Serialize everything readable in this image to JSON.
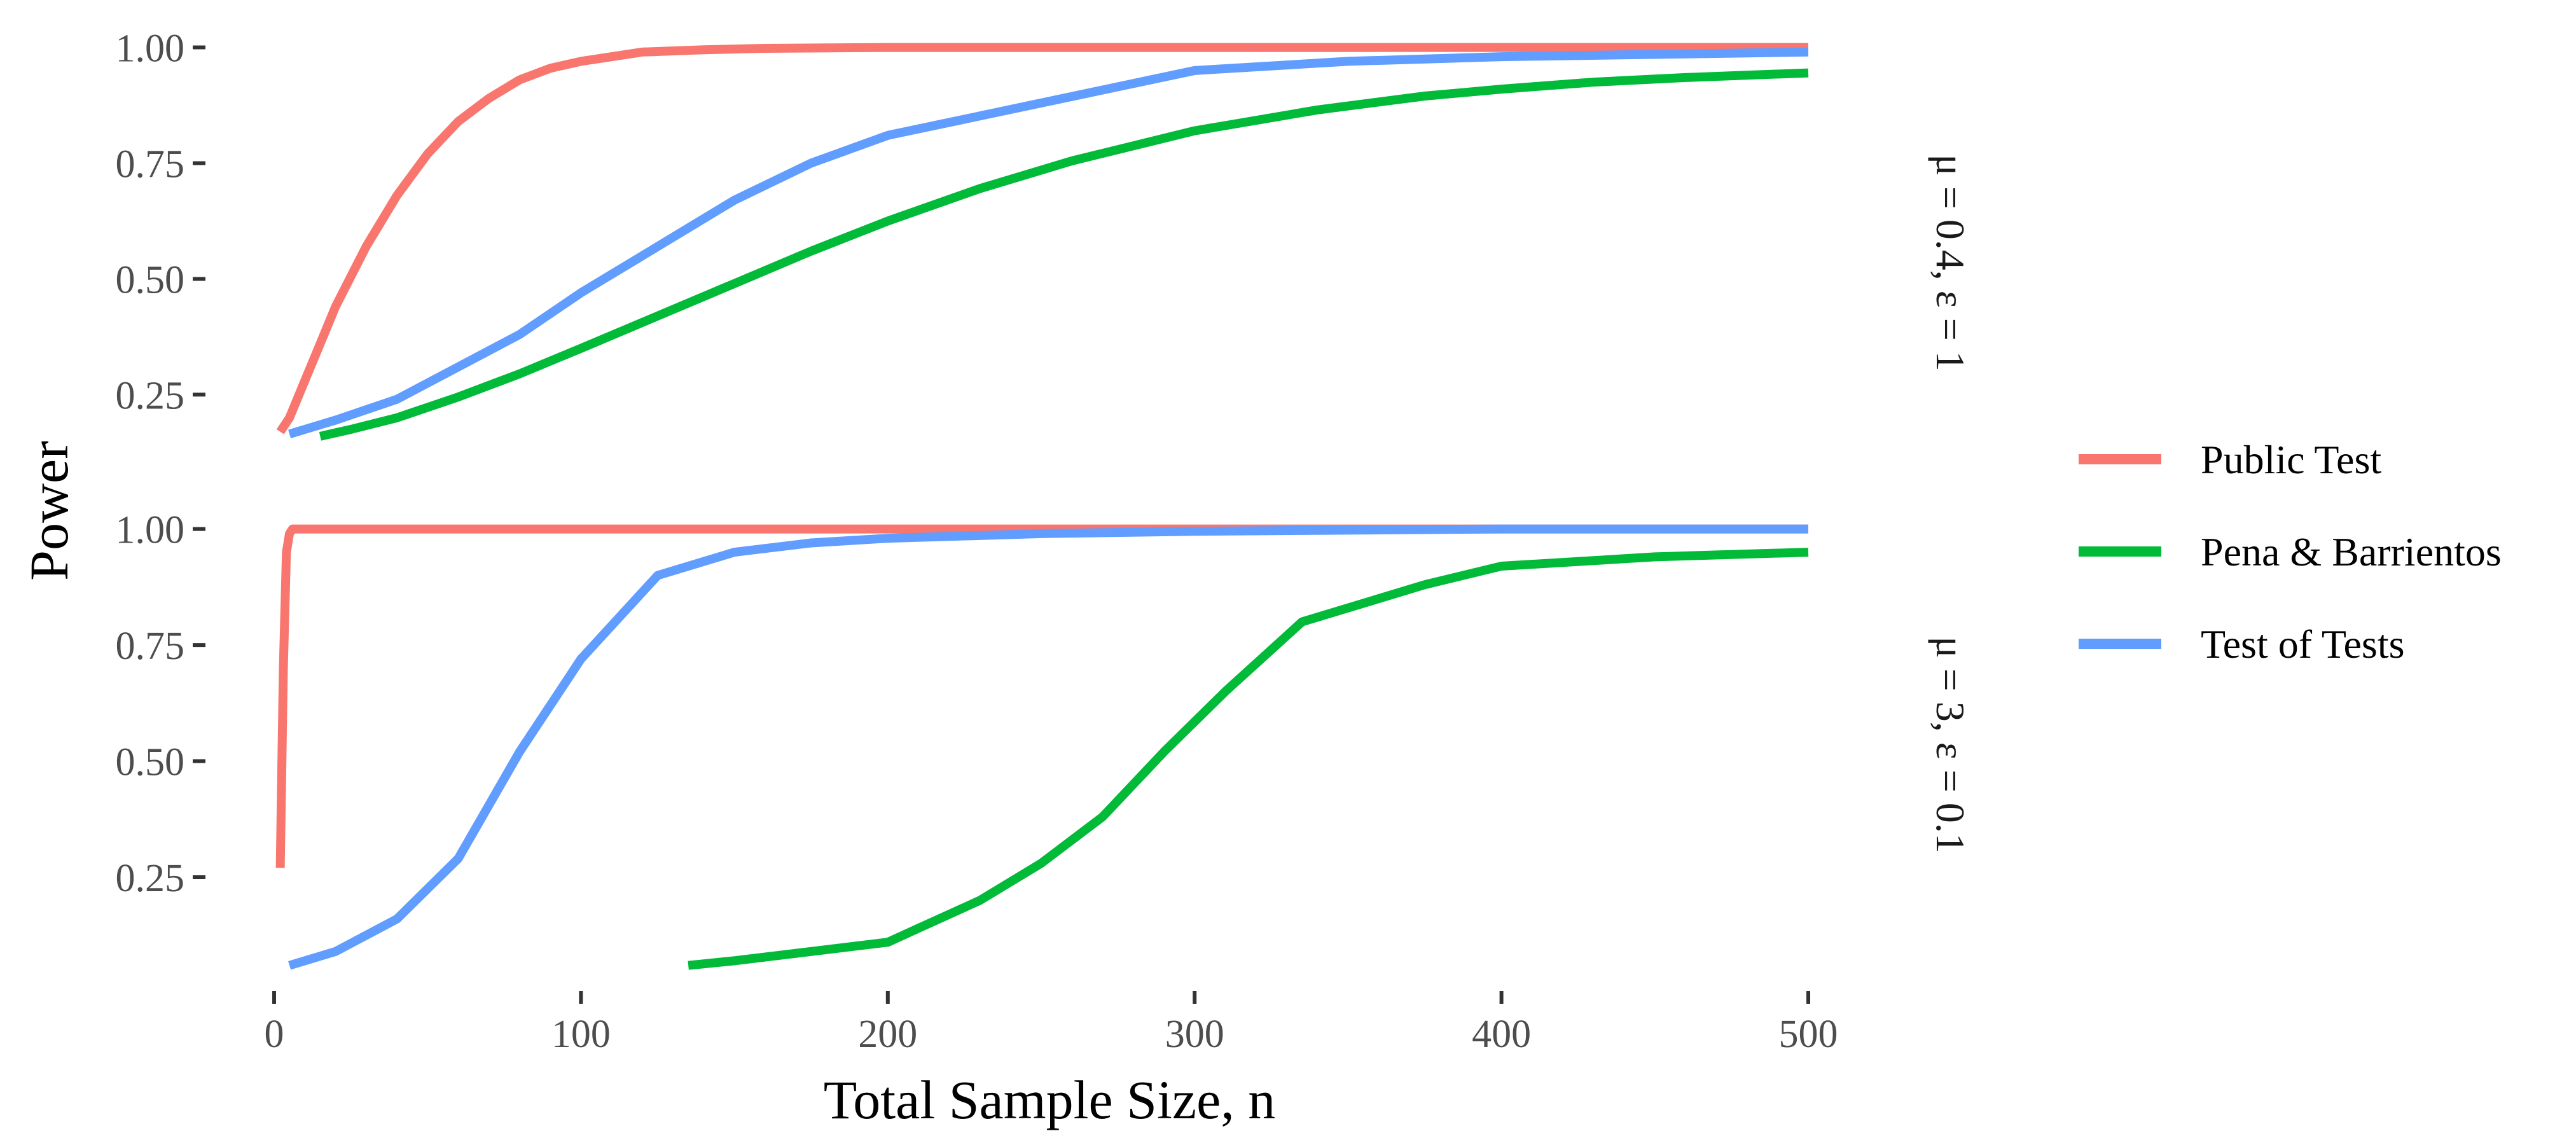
{
  "chart_data": {
    "type": "line",
    "xlabel": "Total Sample Size, n",
    "ylabel": "Power",
    "xlim": [
      0,
      500
    ],
    "ylim": [
      0.05,
      1.02
    ],
    "x_ticks": [
      0,
      100,
      200,
      300,
      400,
      500
    ],
    "y_ticks": [
      0.25,
      0.5,
      0.75,
      1.0
    ],
    "y_tick_labels": [
      "0.25",
      "0.50",
      "0.75",
      "1.00"
    ],
    "grid": false,
    "legend_position": "right",
    "legend": [
      {
        "name": "Public Test",
        "color": "#F8766D"
      },
      {
        "name": "Pena & Barrientos",
        "color": "#00BA38"
      },
      {
        "name": "Test of Tests",
        "color": "#619CFF"
      }
    ],
    "panels": [
      {
        "strip_label": "μ = 0.4,  ε = 1",
        "series": [
          {
            "name": "Public Test",
            "color": "#F8766D",
            "x": [
              2,
              5,
              10,
              15,
              20,
              30,
              40,
              50,
              60,
              70,
              80,
              90,
              100,
              120,
              140,
              160,
              200,
              250,
              300,
              400,
              500
            ],
            "y": [
              0.17,
              0.2,
              0.28,
              0.36,
              0.44,
              0.57,
              0.68,
              0.77,
              0.84,
              0.89,
              0.93,
              0.955,
              0.97,
              0.99,
              0.995,
              0.998,
              1.0,
              1.0,
              1.0,
              1.0,
              1.0
            ]
          },
          {
            "name": "Pena & Barrientos",
            "color": "#00BA38",
            "x": [
              15,
              25,
              40,
              60,
              80,
              100,
              125,
              150,
              175,
              200,
              230,
              260,
              300,
              340,
              375,
              400,
              430,
              460,
              500
            ],
            "y": [
              0.16,
              0.175,
              0.2,
              0.245,
              0.295,
              0.35,
              0.42,
              0.49,
              0.56,
              0.625,
              0.695,
              0.755,
              0.82,
              0.865,
              0.895,
              0.91,
              0.925,
              0.935,
              0.945
            ]
          },
          {
            "name": "Test of Tests",
            "color": "#619CFF",
            "x": [
              5,
              20,
              40,
              60,
              80,
              100,
              125,
              150,
              175,
              200,
              250,
              300,
              350,
              400,
              450,
              500
            ],
            "y": [
              0.165,
              0.195,
              0.24,
              0.31,
              0.38,
              0.47,
              0.57,
              0.67,
              0.75,
              0.81,
              0.88,
              0.95,
              0.97,
              0.98,
              0.985,
              0.99
            ]
          }
        ]
      },
      {
        "strip_label": "μ = 3,  ε = 0.1",
        "series": [
          {
            "name": "Public Test",
            "color": "#F8766D",
            "x": [
              2,
              3,
              4,
              5,
              6,
              8,
              10,
              50,
              100,
              200,
              300,
              400,
              500
            ],
            "y": [
              0.27,
              0.7,
              0.95,
              0.99,
              1.0,
              1.0,
              1.0,
              1.0,
              1.0,
              1.0,
              1.0,
              1.0,
              1.0
            ]
          },
          {
            "name": "Pena & Barrientos",
            "color": "#00BA38",
            "x": [
              135,
              150,
              175,
              200,
              210,
              230,
              250,
              270,
              290,
              310,
              325,
              335,
              350,
              375,
              400,
              450,
              500
            ],
            "y": [
              0.06,
              0.07,
              0.09,
              0.11,
              0.14,
              0.2,
              0.28,
              0.38,
              0.52,
              0.65,
              0.74,
              0.8,
              0.83,
              0.88,
              0.92,
              0.94,
              0.95
            ]
          },
          {
            "name": "Test of Tests",
            "color": "#619CFF",
            "x": [
              5,
              20,
              40,
              60,
              80,
              100,
              125,
              150,
              175,
              200,
              250,
              300,
              400,
              500
            ],
            "y": [
              0.06,
              0.09,
              0.16,
              0.29,
              0.52,
              0.72,
              0.9,
              0.95,
              0.97,
              0.98,
              0.99,
              0.995,
              1.0,
              1.0
            ]
          }
        ]
      }
    ]
  }
}
